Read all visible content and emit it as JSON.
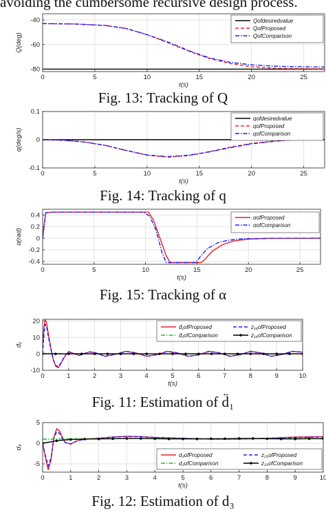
{
  "page": {
    "top_text": "avoiding the cumbersome recursive design process."
  },
  "captions": [
    "Fig. 13: Tracking of Q",
    "Fig. 14: Tracking of q",
    "Fig. 15: Tracking of α",
    "Fig. 11: Estimation of d̈₁",
    "Fig. 12: Estimation of d₃"
  ],
  "colors": {
    "desired": "#000000",
    "proposed": "#e8202a",
    "comparison": "#1a1aff",
    "green": "#22bb22",
    "grid": "#e2e2e2"
  },
  "chart_data": [
    {
      "type": "line",
      "xlabel": "t(s)",
      "ylabel": "Q(deg)",
      "xlim": [
        0,
        27
      ],
      "ylim": [
        -82,
        -35
      ],
      "xticks": [
        0,
        5,
        10,
        15,
        20,
        25
      ],
      "yticks": [
        -80,
        -60,
        -40
      ],
      "grid": true,
      "legend": "top-right",
      "series": [
        {
          "name": "Qofdesiredvalue",
          "color": "desired",
          "dash": "solid",
          "x": [
            0,
            27
          ],
          "y": [
            -80,
            -80
          ]
        },
        {
          "name": "QofProposed",
          "color": "proposed",
          "dash": "dashed",
          "x": [
            0,
            3,
            6,
            8,
            10,
            12,
            14,
            16,
            18,
            20,
            22,
            24,
            27
          ],
          "y": [
            -43,
            -43.3,
            -44.5,
            -47,
            -52,
            -58.5,
            -65.5,
            -71.5,
            -75.5,
            -78,
            -79.2,
            -79.6,
            -79.8
          ]
        },
        {
          "name": "QofComparison",
          "color": "comparison",
          "dash": "dashdot",
          "x": [
            0,
            3,
            6,
            8,
            10,
            12,
            14,
            16,
            18,
            20,
            22,
            24,
            27
          ],
          "y": [
            -43,
            -43.3,
            -44.5,
            -47,
            -52,
            -58,
            -65,
            -71,
            -74.5,
            -76.5,
            -77.5,
            -78,
            -78.3
          ]
        }
      ]
    },
    {
      "type": "line",
      "xlabel": "t(s)",
      "ylabel": "q(deg/s)",
      "xlim": [
        0,
        27
      ],
      "ylim": [
        -0.1,
        0.1
      ],
      "xticks": [
        0,
        5,
        10,
        15,
        20,
        25
      ],
      "yticks": [
        -0.1,
        0,
        0.1
      ],
      "grid": true,
      "legend": "top-right",
      "series": [
        {
          "name": "qofdesiredvalue",
          "color": "desired",
          "dash": "solid",
          "x": [
            0,
            27
          ],
          "y": [
            0,
            0
          ]
        },
        {
          "name": "qofProposed",
          "color": "proposed",
          "dash": "dashed",
          "x": [
            0,
            2,
            4,
            6,
            8,
            10,
            12,
            14,
            16,
            18,
            20,
            22,
            24,
            26,
            27
          ],
          "y": [
            0,
            -0.002,
            -0.008,
            -0.02,
            -0.038,
            -0.055,
            -0.062,
            -0.056,
            -0.042,
            -0.026,
            -0.013,
            -0.005,
            -0.001,
            0.001,
            0.002
          ]
        },
        {
          "name": "qofComparison",
          "color": "comparison",
          "dash": "dashdot",
          "x": [
            0,
            2,
            4,
            6,
            8,
            10,
            12,
            14,
            16,
            18,
            20,
            22,
            24,
            26,
            27
          ],
          "y": [
            0,
            -0.002,
            -0.008,
            -0.02,
            -0.038,
            -0.054,
            -0.06,
            -0.055,
            -0.043,
            -0.028,
            -0.015,
            -0.006,
            0,
            0.002,
            0.004
          ]
        }
      ]
    },
    {
      "type": "line",
      "xlabel": "t(s)",
      "ylabel": "α(rad)",
      "xlim": [
        0,
        27
      ],
      "ylim": [
        -0.45,
        0.5
      ],
      "xticks": [
        0,
        5,
        10,
        15,
        20,
        25
      ],
      "yticks": [
        -0.4,
        -0.2,
        0,
        0.2,
        0.4
      ],
      "grid": true,
      "legend": "top-right",
      "series": [
        {
          "name": "αofProposed",
          "color": "proposed",
          "dash": "solid",
          "x": [
            0,
            0.3,
            1,
            10.3,
            10.8,
            11.3,
            12,
            12.4,
            15.4,
            15.8,
            16.5,
            17.5,
            18.5,
            20,
            22,
            27
          ],
          "y": [
            0,
            0.44,
            0.45,
            0.45,
            0.3,
            0.05,
            -0.3,
            -0.42,
            -0.42,
            -0.36,
            -0.22,
            -0.11,
            -0.05,
            -0.015,
            -0.004,
            0
          ]
        },
        {
          "name": "αofComparison",
          "color": "comparison",
          "dash": "dashdot",
          "x": [
            0,
            0.3,
            1,
            9.8,
            10.4,
            11,
            11.6,
            12,
            14.9,
            15.4,
            16,
            17,
            18,
            19.5,
            22,
            27
          ],
          "y": [
            0,
            0.44,
            0.45,
            0.45,
            0.38,
            0.15,
            -0.25,
            -0.42,
            -0.42,
            -0.3,
            -0.18,
            -0.08,
            -0.035,
            -0.01,
            -0.002,
            0
          ]
        }
      ]
    },
    {
      "type": "line",
      "xlabel": "t(s)",
      "ylabel": "d̈₁",
      "xlim": [
        0,
        10
      ],
      "ylim": [
        -10,
        21
      ],
      "xticks": [
        0,
        1,
        2,
        3,
        4,
        5,
        6,
        7,
        8,
        9,
        10
      ],
      "yticks": [
        -10,
        0,
        10,
        20
      ],
      "grid": true,
      "legend": "top-right",
      "series": [
        {
          "name": "d̈₁ofProposed",
          "color": "proposed",
          "dash": "solid",
          "x": [
            0,
            0.05,
            0.1,
            0.15,
            0.2,
            0.3,
            0.4,
            0.5,
            0.6,
            0.7,
            0.8,
            0.9,
            1.0,
            1.2,
            1.4,
            1.6,
            1.8,
            2.0,
            2.4,
            2.8,
            3.2,
            3.6,
            4.0,
            4.4,
            4.8,
            5.2,
            5.6,
            6.0,
            6.4,
            6.8,
            7.2,
            7.6,
            8.0,
            8.4,
            8.8,
            9.2,
            9.6,
            10
          ],
          "y": [
            5,
            16,
            21,
            19,
            14,
            5,
            -3,
            -7.5,
            -8.5,
            -6,
            -3,
            -0.5,
            1.3,
            0.2,
            -1,
            0.2,
            1.2,
            0.8,
            -1.5,
            -0.3,
            1.5,
            0.5,
            -1.5,
            -0.5,
            1.5,
            0.5,
            -1.5,
            -0.6,
            1.5,
            0.6,
            -1.5,
            -0.5,
            1.5,
            0.5,
            -1.5,
            -0.4,
            1.5,
            1
          ]
        },
        {
          "name": "z₁₄ofProposed",
          "color": "comparison",
          "dash": "dashed",
          "x": [
            0,
            0.05,
            0.1,
            0.15,
            0.2,
            0.3,
            0.4,
            0.5,
            0.6,
            0.7,
            0.8,
            0.9,
            1.0,
            1.2,
            1.4,
            1.6,
            1.8,
            2.0,
            2.4,
            2.8,
            3.2,
            3.6,
            4.0,
            4.4,
            4.8,
            5.2,
            5.6,
            6.0,
            6.4,
            6.8,
            7.2,
            7.6,
            8.0,
            8.4,
            8.8,
            9.2,
            9.6,
            10
          ],
          "y": [
            0,
            12,
            18,
            17,
            12,
            4,
            -3,
            -7,
            -8,
            -5.5,
            -2.8,
            -0.3,
            1.3,
            0.2,
            -1,
            0.2,
            1.2,
            0.8,
            -1.5,
            -0.3,
            1.5,
            0.5,
            -1.5,
            -0.5,
            1.5,
            0.5,
            -1.5,
            -0.6,
            1.5,
            0.6,
            -1.5,
            -0.5,
            1.5,
            0.5,
            -1.5,
            -0.4,
            1.5,
            1
          ]
        },
        {
          "name": "d̈₁ofComparison",
          "color": "green",
          "dash": "dashdot",
          "x": [
            0,
            1,
            2,
            3,
            4,
            5,
            6,
            7,
            8,
            9,
            10
          ],
          "y": [
            0.3,
            0.1,
            0,
            0,
            0,
            0,
            0,
            0,
            0,
            0,
            0
          ]
        },
        {
          "name": "z₁₄ofComparison",
          "color": "desired",
          "dash": "solid-marker",
          "x": [
            0,
            0.5,
            1,
            1.5,
            2,
            2.5,
            3,
            3.5,
            4,
            4.5,
            5,
            5.5,
            6,
            6.5,
            7,
            7.5,
            8,
            8.5,
            9,
            9.5,
            10
          ],
          "y": [
            0,
            0,
            0,
            0,
            0,
            0,
            0,
            0,
            0,
            0,
            0,
            0,
            0,
            0,
            0,
            0,
            0,
            0,
            0,
            0,
            0
          ]
        }
      ]
    },
    {
      "type": "line",
      "xlabel": "t(s)",
      "ylabel": "d₃",
      "xlim": [
        0,
        10
      ],
      "ylim": [
        -7,
        5
      ],
      "xticks": [
        0,
        1,
        2,
        3,
        4,
        5,
        6,
        7,
        8,
        9,
        10
      ],
      "yticks": [
        -5,
        0,
        5
      ],
      "grid": true,
      "legend": "bottom-right",
      "series": [
        {
          "name": "d₃ofProposed",
          "color": "proposed",
          "dash": "solid",
          "x": [
            0,
            0.1,
            0.2,
            0.3,
            0.4,
            0.5,
            0.6,
            0.7,
            0.8,
            1.0,
            1.2,
            1.5,
            2.0,
            2.5,
            3.0,
            3.5,
            4.0,
            5.0,
            6.0,
            7.0,
            8.0,
            9.0,
            10
          ],
          "y": [
            0,
            -3.5,
            -6.5,
            -4,
            1.5,
            3.5,
            3,
            1.5,
            0.2,
            -0.2,
            0.5,
            1,
            1.2,
            1.5,
            1.7,
            1.6,
            1.4,
            1.2,
            1,
            1,
            1.2,
            1.5,
            1.6
          ]
        },
        {
          "name": "z₂₃ofProposed",
          "color": "comparison",
          "dash": "dashed",
          "x": [
            0,
            0.1,
            0.2,
            0.3,
            0.4,
            0.5,
            0.6,
            0.7,
            0.8,
            1.0,
            1.2,
            1.5,
            2.0,
            2.5,
            3.0,
            3.5,
            4.0,
            5.0,
            6.0,
            7.0,
            8.0,
            9.0,
            10
          ],
          "y": [
            0,
            -3,
            -5.5,
            -3.5,
            1.2,
            2.8,
            2.4,
            1.2,
            0.2,
            -0.2,
            0.5,
            1,
            1.2,
            1.5,
            1.6,
            1.6,
            1.4,
            1.2,
            1,
            1,
            1.2,
            1.4,
            1.5
          ]
        },
        {
          "name": "d₃ofComparison",
          "color": "green",
          "dash": "dashdot",
          "x": [
            0,
            0.5,
            1,
            2,
            3,
            4,
            5,
            6,
            7,
            8,
            9,
            10
          ],
          "y": [
            1,
            1,
            1.05,
            1.1,
            1.15,
            1.15,
            1.1,
            1.05,
            1.05,
            1.1,
            1.15,
            1.15
          ]
        },
        {
          "name": "z₂₃ofComparison",
          "color": "desired",
          "dash": "solid-marker",
          "x": [
            0,
            0.5,
            1,
            1.5,
            2,
            2.5,
            3,
            3.5,
            4,
            4.5,
            5,
            5.5,
            6,
            6.5,
            7,
            7.5,
            8,
            8.5,
            9,
            9.5,
            10
          ],
          "y": [
            0,
            0.6,
            0.9,
            1,
            1.05,
            1.1,
            1.15,
            1.15,
            1.1,
            1.05,
            1.05,
            1.05,
            1.1,
            1.1,
            1.15,
            1.15,
            1.1,
            1.05,
            1.05,
            1.1,
            1.1
          ]
        }
      ]
    }
  ]
}
